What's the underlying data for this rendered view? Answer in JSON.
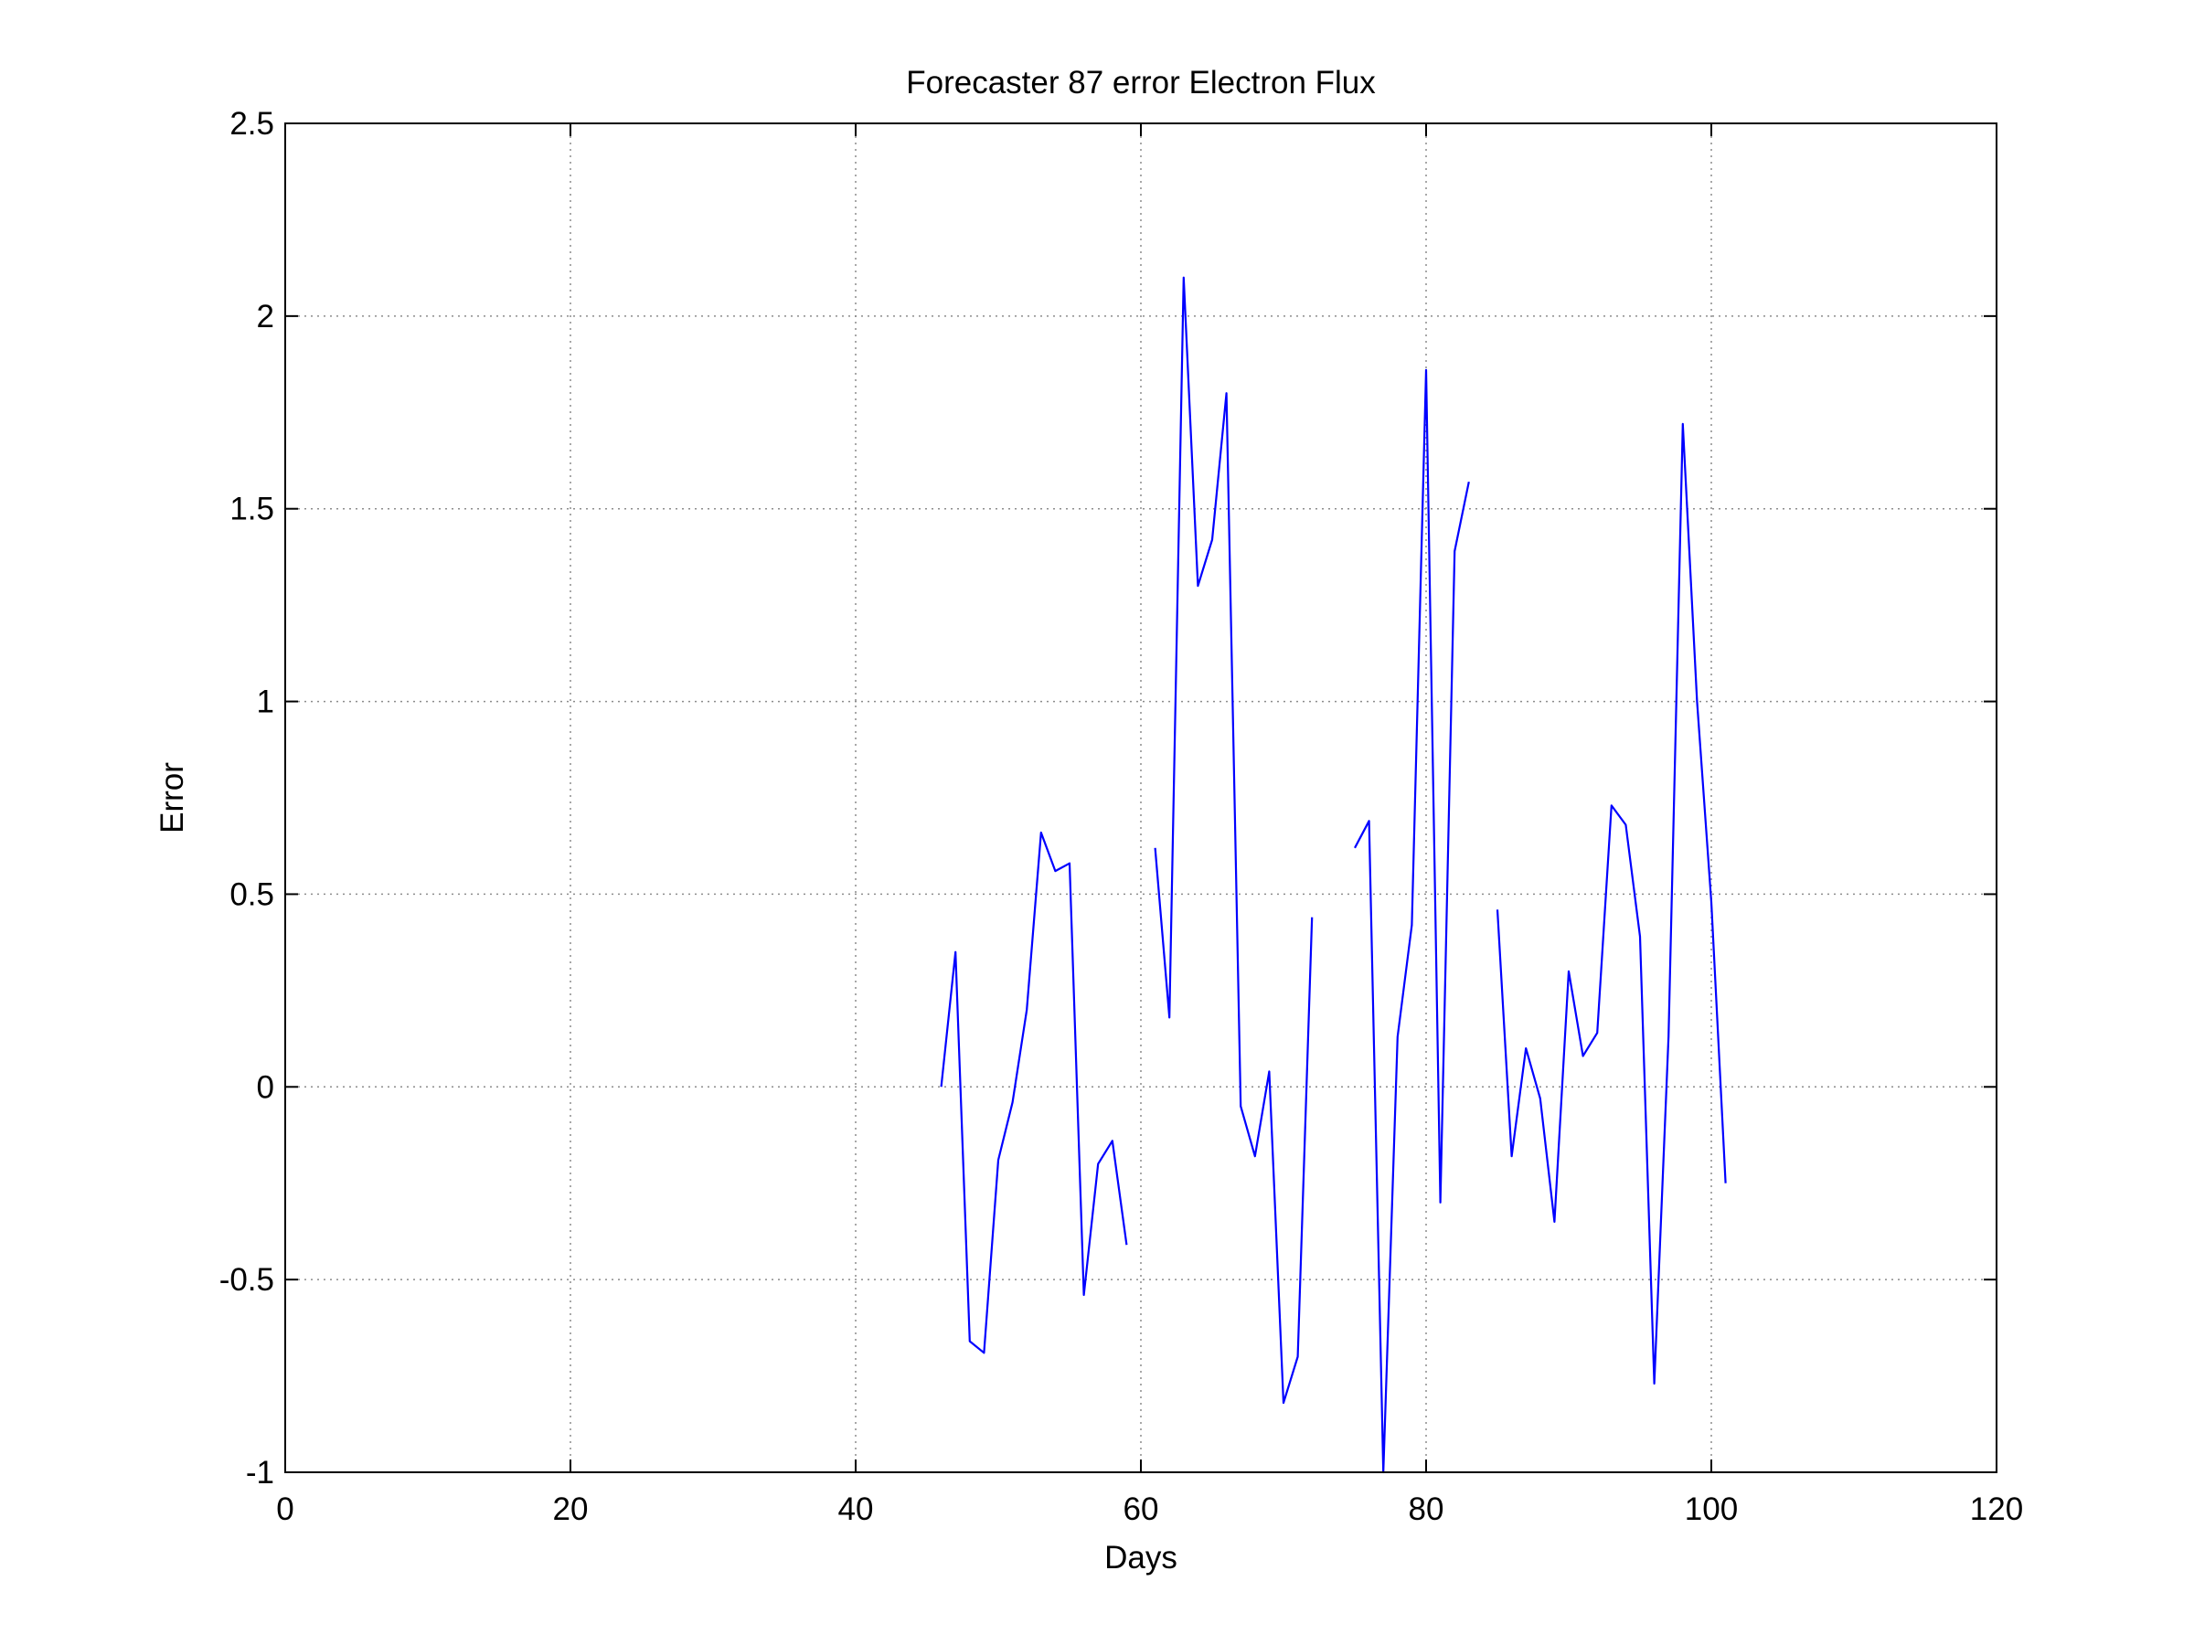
{
  "chart_data": {
    "type": "line",
    "title": "Forecaster 87 error  Electron Flux",
    "xlabel": "Days",
    "ylabel": "Error",
    "xlim": [
      0,
      120
    ],
    "ylim": [
      -1,
      2.5
    ],
    "xticks": [
      0,
      20,
      40,
      60,
      80,
      100,
      120
    ],
    "yticks": [
      -1,
      -0.5,
      0,
      0.5,
      1,
      1.5,
      2,
      2.5
    ],
    "xtick_labels": [
      "0",
      "20",
      "40",
      "60",
      "80",
      "100",
      "120"
    ],
    "ytick_labels": [
      "-1",
      "-0.5",
      "0",
      "0.5",
      "1",
      "1.5",
      "2",
      "2.5"
    ],
    "grid": true,
    "color": "#0000ff",
    "series": [
      {
        "segments": [
          [
            [
              46,
              0.0
            ],
            [
              47,
              0.35
            ],
            [
              48,
              -0.66
            ],
            [
              49,
              -0.69
            ],
            [
              50,
              -0.19
            ],
            [
              51,
              -0.04
            ],
            [
              52,
              0.2
            ],
            [
              53,
              0.66
            ],
            [
              54,
              0.56
            ],
            [
              55,
              0.58
            ],
            [
              56,
              -0.54
            ],
            [
              57,
              -0.2
            ],
            [
              58,
              -0.14
            ],
            [
              59,
              -0.41
            ]
          ],
          [
            [
              61,
              0.62
            ],
            [
              62,
              0.18
            ],
            [
              63,
              2.1
            ],
            [
              64,
              1.3
            ],
            [
              65,
              1.42
            ],
            [
              66,
              1.8
            ],
            [
              67,
              -0.05
            ],
            [
              68,
              -0.18
            ],
            [
              69,
              0.04
            ],
            [
              70,
              -0.82
            ],
            [
              71,
              -0.7
            ],
            [
              72,
              0.44
            ]
          ],
          [
            [
              75,
              0.62
            ],
            [
              76,
              0.69
            ],
            [
              77,
              -1.0
            ],
            [
              78,
              0.13
            ],
            [
              79,
              0.42
            ],
            [
              80,
              1.86
            ],
            [
              81,
              -0.3
            ],
            [
              82,
              1.39
            ],
            [
              83,
              1.57
            ]
          ],
          [
            [
              85,
              0.46
            ],
            [
              86,
              -0.18
            ],
            [
              87,
              0.1
            ],
            [
              88,
              -0.03
            ],
            [
              89,
              -0.35
            ],
            [
              90,
              0.3
            ],
            [
              91,
              0.08
            ],
            [
              92,
              0.14
            ],
            [
              93,
              0.73
            ],
            [
              94,
              0.68
            ],
            [
              95,
              0.39
            ],
            [
              96,
              -0.77
            ],
            [
              97,
              0.13
            ],
            [
              98,
              1.72
            ],
            [
              99,
              1.0
            ],
            [
              100,
              0.48
            ],
            [
              101,
              -0.25
            ]
          ]
        ]
      }
    ]
  }
}
